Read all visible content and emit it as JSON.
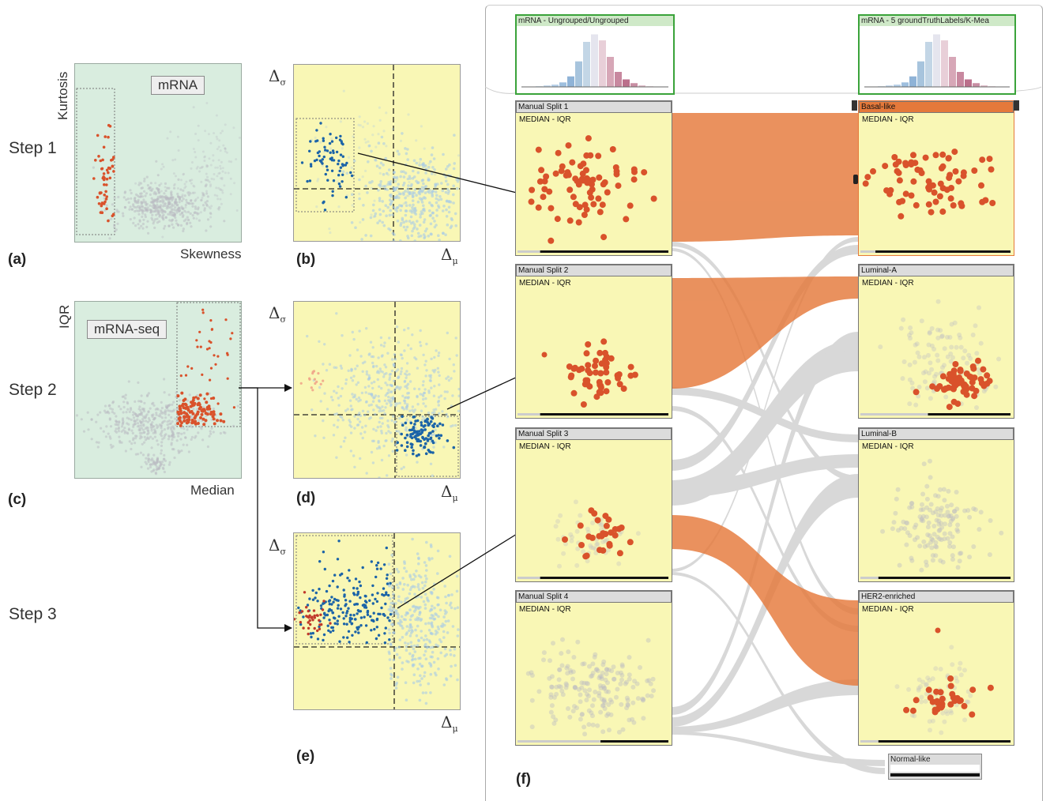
{
  "steps": [
    "Step 1",
    "Step 2",
    "Step 3"
  ],
  "panel_a": {
    "letter": "(a)",
    "tag": "mRNA",
    "ylabel": "Kurtosis",
    "xlabel": "Skewness"
  },
  "panel_b": {
    "letter": "(b)",
    "ylabel": "Δ",
    "ysub": "σ",
    "xlabel": "Δ",
    "xsub": "μ"
  },
  "panel_c": {
    "letter": "(c)",
    "tag": "mRNA-seq",
    "ylabel": "IQR",
    "xlabel": "Median"
  },
  "panel_d": {
    "letter": "(d)",
    "ylabel": "Δ",
    "ysub": "σ",
    "xlabel": "Δ",
    "xsub": "μ"
  },
  "panel_e": {
    "letter": "(e)",
    "ylabel": "Δ",
    "ysub": "σ",
    "xlabel": "Δ",
    "xsub": "μ"
  },
  "panel_f": {
    "letter": "(f)",
    "header_left": "mRNA - Ungrouped/Ungrouped",
    "header_right": "mRNA - 5 groundTruthLabels/K-Mea",
    "node_subtitle": "MEDIAN - IQR",
    "left_nodes": [
      "Manual Split 1",
      "Manual Split 2",
      "Manual Split 3",
      "Manual Split 4"
    ],
    "right_nodes": [
      "Basal-like",
      "Luminal-A",
      "Luminal-B",
      "HER2-enriched"
    ],
    "extra_node": "Normal-like"
  },
  "colors": {
    "red": "#d9522b",
    "blue": "#1c64a8",
    "lightblue": "#a9cbe6",
    "gray": "#b9b9c2",
    "orange": "#e5793b",
    "plotYellow": "#f9f7b5",
    "plotGreen": "#d9eddf"
  }
}
